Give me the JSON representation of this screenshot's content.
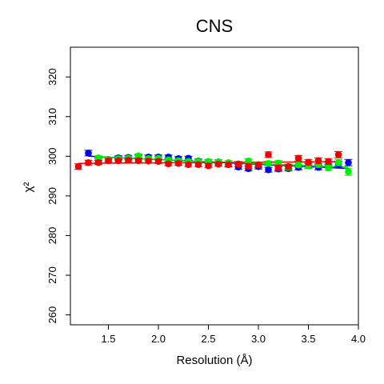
{
  "chart_data": {
    "type": "scatter",
    "title": "CNS",
    "xlabel": "Resolution (Å)",
    "ylabel": "χ²",
    "xlim": [
      1.12,
      4.0
    ],
    "ylim": [
      257.5,
      327.5
    ],
    "xticks": [
      1.5,
      2.0,
      2.5,
      3.0,
      3.5,
      4.0
    ],
    "xtick_labels": [
      "1.5",
      "2.0",
      "2.5",
      "3.0",
      "3.5",
      "4.0"
    ],
    "yticks": [
      260,
      270,
      280,
      290,
      300,
      310,
      320
    ],
    "ytick_labels": [
      "260",
      "270",
      "280",
      "290",
      "300",
      "310",
      "320"
    ],
    "grid": false,
    "legend": "none",
    "series": [
      {
        "color": "#0000ee",
        "x": [
          1.3,
          1.4,
          1.5,
          1.6,
          1.7,
          1.8,
          1.9,
          2.0,
          2.1,
          2.2,
          2.3,
          2.4,
          2.5,
          2.6,
          2.7,
          2.8,
          2.9,
          3.0,
          3.1,
          3.2,
          3.3,
          3.4,
          3.5,
          3.6,
          3.7,
          3.8,
          3.9
        ],
        "y": [
          300.8,
          298.9,
          299.2,
          299.6,
          299.7,
          299.8,
          299.8,
          299.8,
          299.8,
          299.4,
          299.5,
          298.8,
          298.6,
          298.6,
          297.9,
          297.3,
          296.9,
          297.4,
          296.6,
          296.8,
          296.9,
          297.2,
          297.6,
          297.2,
          297.8,
          298.0,
          298.4
        ],
        "err": [
          0.7,
          0.6,
          0.5,
          0.5,
          0.5,
          0.5,
          0.5,
          0.5,
          0.5,
          0.5,
          0.5,
          0.5,
          0.5,
          0.5,
          0.6,
          0.6,
          0.6,
          0.6,
          0.6,
          0.6,
          0.6,
          0.6,
          0.6,
          0.6,
          0.7,
          0.7,
          0.8
        ]
      },
      {
        "color": "#00ee00",
        "x": [
          1.4,
          1.5,
          1.6,
          1.7,
          1.8,
          1.9,
          2.0,
          2.1,
          2.2,
          2.3,
          2.4,
          2.5,
          2.6,
          2.7,
          2.8,
          2.9,
          3.0,
          3.1,
          3.2,
          3.3,
          3.4,
          3.5,
          3.6,
          3.7,
          3.8,
          3.9
        ],
        "y": [
          299.6,
          299.2,
          299.4,
          299.5,
          300.1,
          299.4,
          299.5,
          299.1,
          298.9,
          298.7,
          298.7,
          298.7,
          298.6,
          298.4,
          298.1,
          298.8,
          297.9,
          298.2,
          298.3,
          297.2,
          297.8,
          297.6,
          297.9,
          297.1,
          298.4,
          296.1
        ],
        "err": [
          0.5,
          0.5,
          0.5,
          0.5,
          0.5,
          0.5,
          0.5,
          0.5,
          0.5,
          0.5,
          0.5,
          0.5,
          0.5,
          0.5,
          0.6,
          0.6,
          0.6,
          0.6,
          0.6,
          0.6,
          0.6,
          0.7,
          0.7,
          0.7,
          0.8,
          0.9
        ]
      },
      {
        "color": "#ee0000",
        "x": [
          1.2,
          1.3,
          1.4,
          1.5,
          1.6,
          1.7,
          1.8,
          1.9,
          2.0,
          2.1,
          2.2,
          2.3,
          2.4,
          2.5,
          2.6,
          2.7,
          2.8,
          2.9,
          3.0,
          3.1,
          3.2,
          3.3,
          3.4,
          3.5,
          3.6,
          3.7,
          3.8
        ],
        "y": [
          297.4,
          298.4,
          298.4,
          298.9,
          298.9,
          299.0,
          298.9,
          298.8,
          298.7,
          298.1,
          298.2,
          297.9,
          297.9,
          297.6,
          298.0,
          297.9,
          298.0,
          297.5,
          297.8,
          300.4,
          297.1,
          297.4,
          299.5,
          298.5,
          298.9,
          298.7,
          300.4
        ],
        "err": [
          0.7,
          0.6,
          0.5,
          0.5,
          0.5,
          0.5,
          0.5,
          0.5,
          0.5,
          0.5,
          0.5,
          0.5,
          0.5,
          0.5,
          0.5,
          0.5,
          0.6,
          0.6,
          0.6,
          0.7,
          0.6,
          0.6,
          0.7,
          0.7,
          0.7,
          0.7,
          0.8
        ]
      }
    ]
  }
}
